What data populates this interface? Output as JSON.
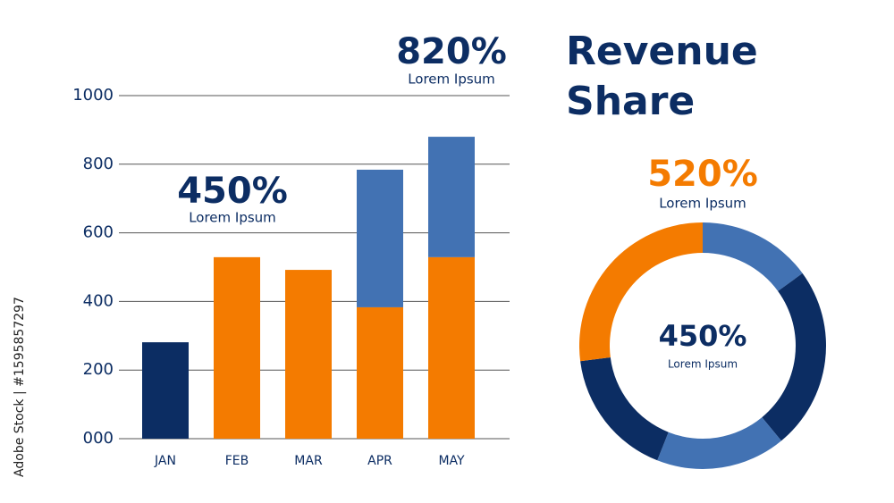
{
  "watermark": "Adobe Stock | #1595857297",
  "chart_data": [
    {
      "type": "bar",
      "categories": [
        "JAN",
        "FEB",
        "MAR",
        "APR",
        "MAY"
      ],
      "series": [
        {
          "color": "#0c2d63",
          "values": [
            281,
            null,
            null,
            null,
            null
          ]
        },
        {
          "color": "#f47b00",
          "values": [
            null,
            529,
            492,
            383,
            529
          ]
        },
        {
          "color": "#4272b3",
          "values": [
            null,
            null,
            null,
            401,
            351
          ]
        }
      ],
      "ylim": [
        0,
        1000
      ],
      "yticks": [
        {
          "value": 0,
          "label": "000"
        },
        200,
        400,
        600,
        800,
        1000
      ],
      "grid": true,
      "annotations": [
        "450%",
        "Lorem Ipsum",
        "820%",
        "Lorem Ipsum"
      ]
    },
    {
      "type": "donut",
      "title": "Revenue Share",
      "values": [
        15,
        24,
        17,
        17,
        27
      ],
      "colors": [
        "#4272b3",
        "#0c2d63",
        "#4272b3",
        "#0c2d63",
        "#f47b00"
      ],
      "annotations": [
        "520%",
        "Lorem Ipsum"
      ],
      "center_text": [
        "450%",
        "Lorem Ipsum"
      ]
    }
  ]
}
